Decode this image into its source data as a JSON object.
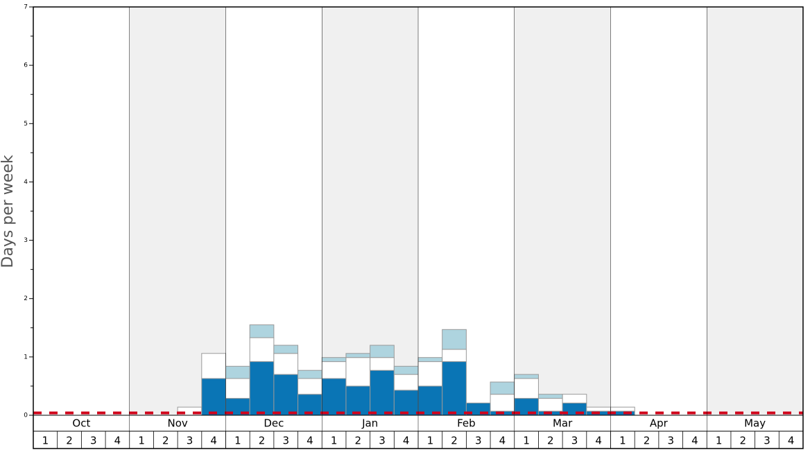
{
  "chart_data": {
    "type": "stacked_bar",
    "y_label": "Days per week",
    "months": [
      "Oct",
      "Nov",
      "Dec",
      "Jan",
      "Feb",
      "Mar",
      "Apr",
      "May"
    ],
    "categories": [
      "1",
      "2",
      "3",
      "4",
      "1",
      "2",
      "3",
      "4",
      "1",
      "2",
      "3",
      "4",
      "1",
      "2",
      "3",
      "4",
      "1",
      "2",
      "3",
      "4",
      "1",
      "2",
      "3",
      "4",
      "1",
      "2",
      "3",
      "4",
      "1",
      "2",
      "3",
      "4"
    ],
    "series": [
      {
        "color": "#0a75b5",
        "values": [
          0,
          0,
          0,
          0,
          0,
          0,
          0,
          0.63,
          0.29,
          0.92,
          0.7,
          0.36,
          0.63,
          0.5,
          0.77,
          0.43,
          0.5,
          0.92,
          0.21,
          0.07,
          0.29,
          0.07,
          0.21,
          0.07,
          0.07,
          0,
          0,
          0,
          0,
          0,
          0,
          0
        ]
      },
      {
        "color": "#ffffff",
        "values": [
          0,
          0,
          0,
          0,
          0,
          0,
          0.14,
          0.43,
          0.34,
          0.41,
          0.36,
          0.27,
          0.29,
          0.49,
          0.22,
          0.27,
          0.42,
          0.21,
          0,
          0.29,
          0.34,
          0.22,
          0.15,
          0.07,
          0.07,
          0,
          0,
          0,
          0,
          0,
          0,
          0
        ]
      },
      {
        "color": "#aed4df",
        "values": [
          0,
          0,
          0,
          0,
          0,
          0,
          0,
          0,
          0.21,
          0.22,
          0.14,
          0.14,
          0.07,
          0.07,
          0.21,
          0.14,
          0.07,
          0.34,
          0,
          0.21,
          0.07,
          0.07,
          0,
          0,
          0,
          0,
          0,
          0,
          0,
          0,
          0,
          0
        ]
      }
    ],
    "threshold": 0.04,
    "threshold_color": "#d0021b",
    "band_color": "#f0f0f0",
    "ylim": [
      0,
      7
    ],
    "yticks": [
      0,
      1,
      2,
      3,
      4,
      5,
      6,
      7
    ],
    "yminorticks": [
      0.5,
      1.5,
      2.5,
      3.5,
      4.5,
      5.5,
      6.5
    ]
  }
}
